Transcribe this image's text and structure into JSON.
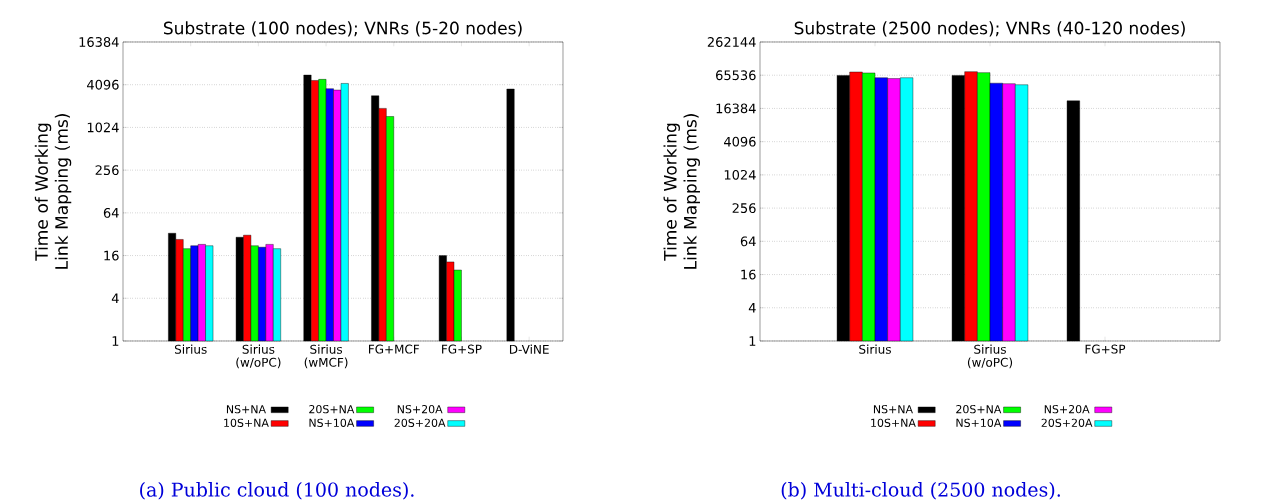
{
  "chart_data": [
    {
      "type": "bar",
      "title": "Substrate (100 nodes); VNRs (5-20 nodes)",
      "ylabel": "Time of Working Link Mapping (ms)",
      "categories": [
        "Sirius",
        "Sirius (w/oPC)",
        "Sirius (wMCF)",
        "FG+MCF",
        "FG+SP",
        "D-ViNE"
      ],
      "series": [
        {
          "name": "NS+NA",
          "color": "#000000",
          "values": [
            33,
            29,
            5600,
            2860,
            16,
            3560
          ]
        },
        {
          "name": "10S+NA",
          "color": "#ff0000",
          "values": [
            27,
            31,
            4700,
            1900,
            13,
            null
          ]
        },
        {
          "name": "20S+NA",
          "color": "#00ff00",
          "values": [
            20,
            22,
            4870,
            1460,
            10,
            null
          ]
        },
        {
          "name": "NS+10A",
          "color": "#0000ff",
          "values": [
            22,
            21,
            3600,
            null,
            null,
            null
          ]
        },
        {
          "name": "NS+20A",
          "color": "#ff00ff",
          "values": [
            23,
            23,
            3440,
            null,
            null,
            null
          ]
        },
        {
          "name": "20S+20A",
          "color": "#00ffff",
          "values": [
            22,
            20,
            4270,
            null,
            null,
            null
          ]
        }
      ],
      "log": "y",
      "ylim": [
        1,
        16384
      ],
      "yticks": [
        1,
        4,
        16,
        64,
        256,
        1024,
        4096,
        16384
      ],
      "grid": "y",
      "legend": "bottom",
      "annotations": [
        "(a) Public cloud (100 nodes)."
      ]
    },
    {
      "type": "bar",
      "title": "Substrate (2500 nodes); VNRs (40-120 nodes)",
      "ylabel": "Time of Working Link Mapping (ms)",
      "categories": [
        "Sirius",
        "Sirius (w/oPC)",
        "FG+SP"
      ],
      "series": [
        {
          "name": "NS+NA",
          "color": "#000000",
          "values": [
            65000,
            65000,
            22500
          ]
        },
        {
          "name": "10S+NA",
          "color": "#ff0000",
          "values": [
            75000,
            76000,
            null
          ]
        },
        {
          "name": "20S+NA",
          "color": "#00ff00",
          "values": [
            72000,
            73000,
            null
          ]
        },
        {
          "name": "NS+10A",
          "color": "#0000ff",
          "values": [
            59000,
            47000,
            null
          ]
        },
        {
          "name": "NS+20A",
          "color": "#ff00ff",
          "values": [
            57000,
            46000,
            null
          ]
        },
        {
          "name": "20S+20A",
          "color": "#00ffff",
          "values": [
            59000,
            44000,
            null
          ]
        }
      ],
      "log": "y",
      "ylim": [
        1,
        262144
      ],
      "yticks": [
        1,
        4,
        16,
        64,
        256,
        1024,
        4096,
        16384,
        65536,
        262144
      ],
      "grid": "y",
      "legend": "bottom",
      "annotations": [
        "(b) Multi-cloud (2500 nodes)."
      ]
    }
  ]
}
